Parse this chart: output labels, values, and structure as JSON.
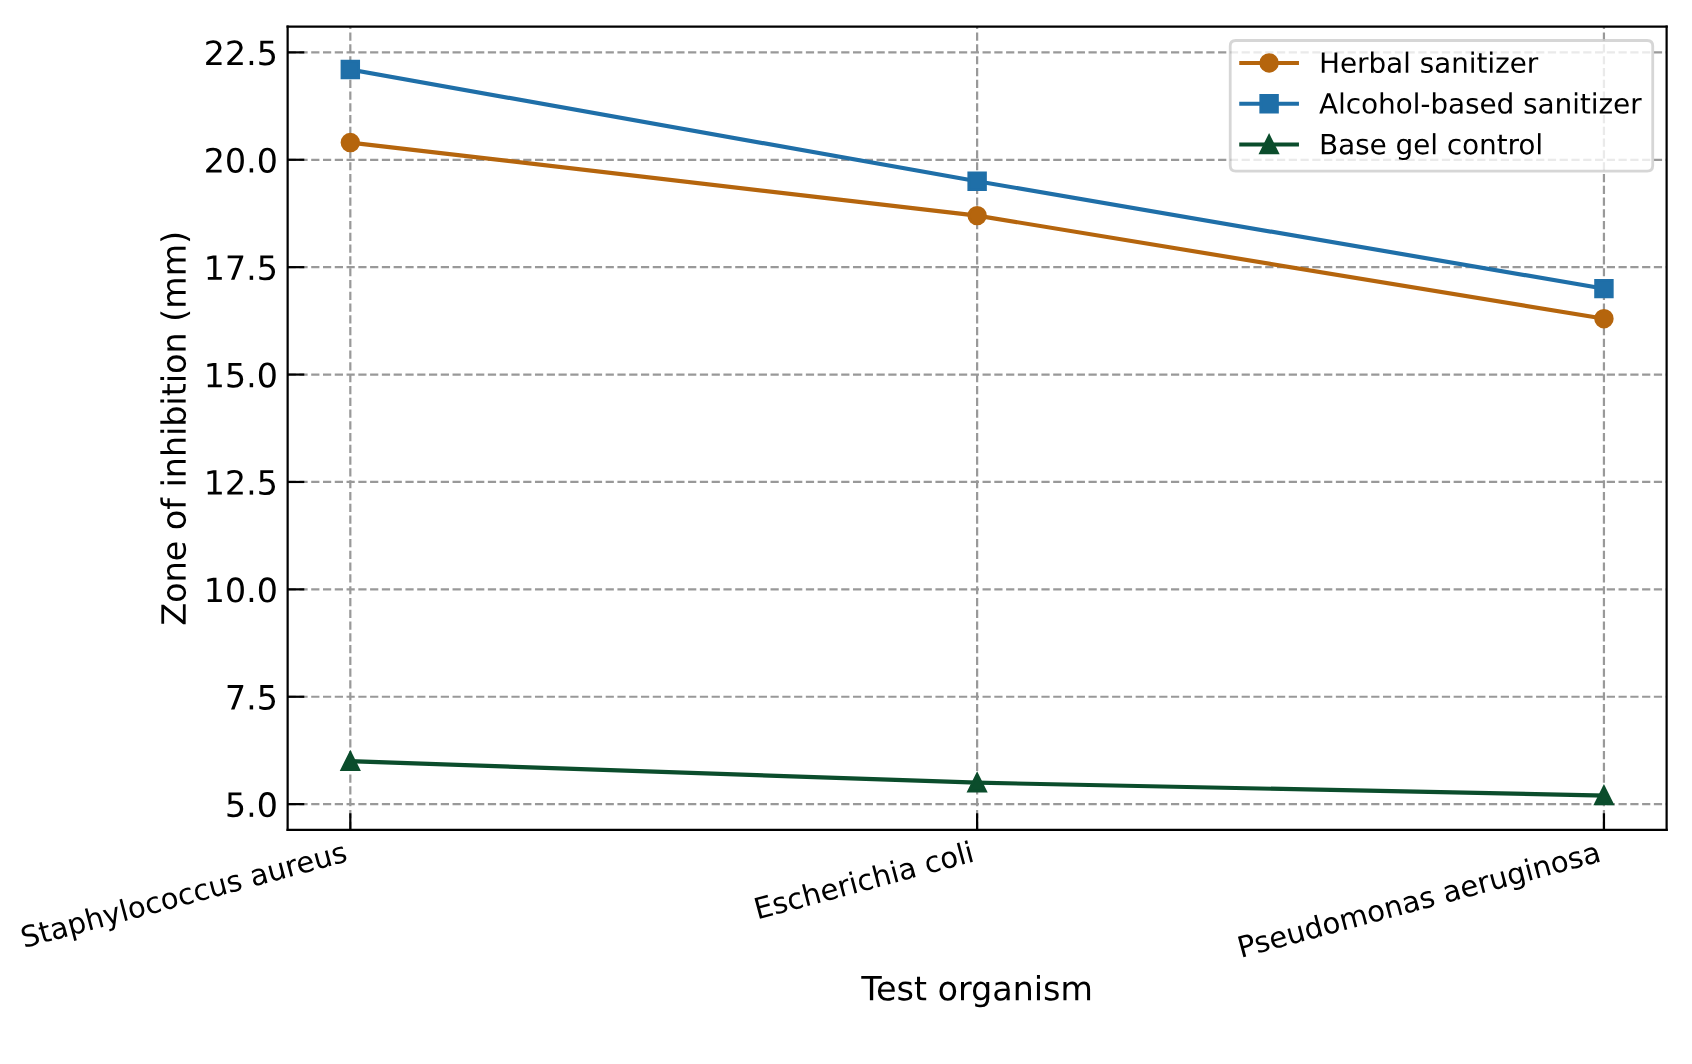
{
  "chart_data": {
    "type": "line",
    "xlabel": "Test organism",
    "ylabel": "Zone of inhibition (mm)",
    "categories": [
      "Staphylococcus aureus",
      "Escherichia coli",
      "Pseudomonas aeruginosa"
    ],
    "series": [
      {
        "name": "Herbal sanitizer",
        "color": "#b5650d",
        "marker": "circle",
        "values": [
          20.4,
          18.7,
          16.3
        ]
      },
      {
        "name": "Alcohol-based sanitizer",
        "color": "#1f6fa8",
        "marker": "square",
        "values": [
          22.1,
          19.5,
          17.0
        ]
      },
      {
        "name": "Base gel control",
        "color": "#0b4d2c",
        "marker": "triangle",
        "values": [
          6.0,
          5.5,
          5.2
        ]
      }
    ],
    "ylim": [
      4.4,
      23.1
    ],
    "yticks": [
      {
        "value": 5,
        "label": "5.0"
      },
      {
        "value": 7.5,
        "label": "7.5"
      },
      {
        "value": 10,
        "label": "10.0"
      },
      {
        "value": 12.5,
        "label": "12.5"
      },
      {
        "value": 15,
        "label": "15.0"
      },
      {
        "value": 17.5,
        "label": "17.5"
      },
      {
        "value": 20,
        "label": "20.0"
      },
      {
        "value": 22.5,
        "label": "22.5"
      }
    ],
    "grid": true,
    "legend": "top right",
    "line_style": "solid"
  }
}
